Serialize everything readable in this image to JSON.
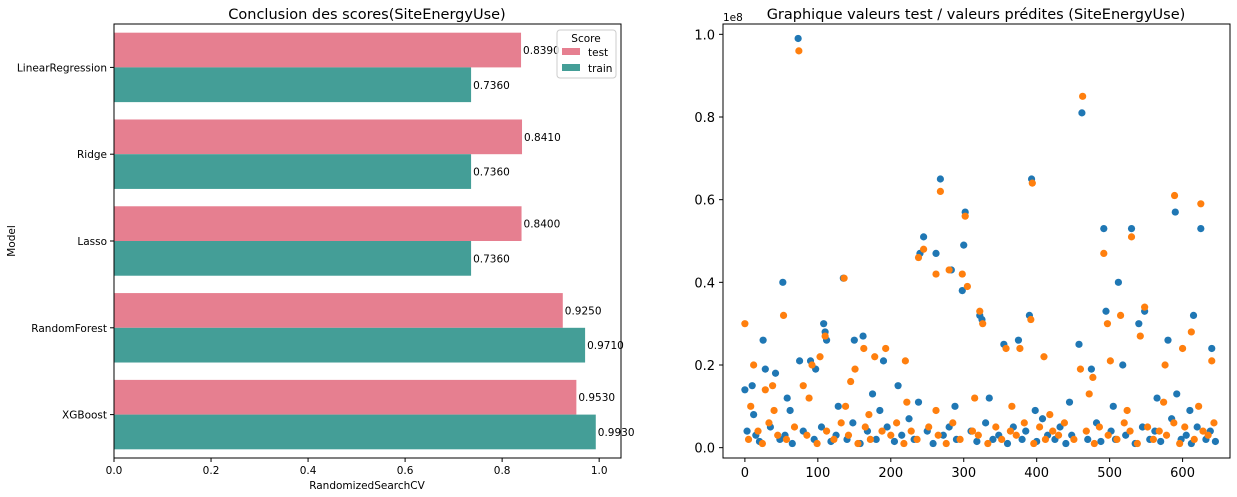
{
  "chart_data": [
    {
      "type": "bar",
      "orientation": "horizontal",
      "title": "Conclusion des scores(SiteEnergyUse)",
      "xlabel": "RandomizedSearchCV",
      "ylabel": "Model",
      "categories": [
        "LinearRegression",
        "Ridge",
        "Lasso",
        "RandomForest",
        "XGBoost"
      ],
      "series": [
        {
          "name": "test",
          "color": "#e67f90",
          "values": [
            0.839,
            0.841,
            0.84,
            0.925,
            0.953
          ],
          "labels": [
            "0.8390",
            "0.8410",
            "0.8400",
            "0.9250",
            "0.9530"
          ]
        },
        {
          "name": "train",
          "color": "#449e97",
          "values": [
            0.736,
            0.736,
            0.736,
            0.971,
            0.993
          ],
          "labels": [
            "0.7360",
            "0.7360",
            "0.7360",
            "0.9710",
            "0.9930"
          ]
        }
      ],
      "xlim": [
        0,
        1.045
      ],
      "xticks": [
        "0.0",
        "0.2",
        "0.4",
        "0.6",
        "0.8",
        "1.0"
      ],
      "legend": {
        "title": "Score",
        "position": "top-right"
      },
      "grid": false
    },
    {
      "type": "scatter",
      "title": "Graphique valeurs test / valeurs prédites (SiteEnergyUse)",
      "xlabel": "",
      "ylabel": "",
      "offset_text": "1e8",
      "xlim": [
        -30,
        665
      ],
      "ylim": [
        -0.025,
        1.025
      ],
      "xticks": [
        "0",
        "100",
        "200",
        "300",
        "400",
        "500",
        "600"
      ],
      "yticks": [
        "0.0",
        "0.2",
        "0.4",
        "0.6",
        "0.8",
        "1.0"
      ],
      "series": [
        {
          "color": "#1f77b4",
          "points": [
            [
              0,
              0.14
            ],
            [
              10,
              0.15
            ],
            [
              25,
              0.26
            ],
            [
              28,
              0.19
            ],
            [
              42,
              0.18
            ],
            [
              52,
              0.4
            ],
            [
              58,
              0.12
            ],
            [
              73,
              0.99
            ],
            [
              75,
              0.21
            ],
            [
              90,
              0.21
            ],
            [
              97,
              0.19
            ],
            [
              108,
              0.3
            ],
            [
              110,
              0.28
            ],
            [
              112,
              0.26
            ],
            [
              135,
              0.41
            ],
            [
              150,
              0.26
            ],
            [
              162,
              0.27
            ],
            [
              175,
              0.13
            ],
            [
              190,
              0.21
            ],
            [
              210,
              0.15
            ],
            [
              240,
              0.47
            ],
            [
              245,
              0.51
            ],
            [
              262,
              0.47
            ],
            [
              268,
              0.65
            ],
            [
              283,
              0.43
            ],
            [
              298,
              0.38
            ],
            [
              300,
              0.49
            ],
            [
              302,
              0.57
            ],
            [
              322,
              0.32
            ],
            [
              325,
              0.31
            ],
            [
              355,
              0.25
            ],
            [
              375,
              0.26
            ],
            [
              390,
              0.32
            ],
            [
              393,
              0.65
            ],
            [
              458,
              0.25
            ],
            [
              462,
              0.81
            ],
            [
              475,
              0.19
            ],
            [
              492,
              0.53
            ],
            [
              495,
              0.33
            ],
            [
              512,
              0.4
            ],
            [
              518,
              0.2
            ],
            [
              530,
              0.53
            ],
            [
              540,
              0.3
            ],
            [
              548,
              0.33
            ],
            [
              580,
              0.26
            ],
            [
              590,
              0.57
            ],
            [
              592,
              0.13
            ],
            [
              615,
              0.32
            ],
            [
              625,
              0.53
            ],
            [
              640,
              0.24
            ],
            [
              3,
              0.04
            ],
            [
              15,
              0.03
            ],
            [
              20,
              0.015
            ],
            [
              35,
              0.05
            ],
            [
              48,
              0.02
            ],
            [
              55,
              0.03
            ],
            [
              65,
              0.01
            ],
            [
              80,
              0.04
            ],
            [
              95,
              0.02
            ],
            [
              105,
              0.05
            ],
            [
              118,
              0.015
            ],
            [
              125,
              0.03
            ],
            [
              140,
              0.02
            ],
            [
              148,
              0.06
            ],
            [
              158,
              0.01
            ],
            [
              168,
              0.04
            ],
            [
              180,
              0.02
            ],
            [
              195,
              0.05
            ],
            [
              205,
              0.015
            ],
            [
              215,
              0.03
            ],
            [
              225,
              0.07
            ],
            [
              232,
              0.02
            ],
            [
              250,
              0.04
            ],
            [
              258,
              0.01
            ],
            [
              272,
              0.03
            ],
            [
              280,
              0.05
            ],
            [
              290,
              0.02
            ],
            [
              310,
              0.04
            ],
            [
              318,
              0.015
            ],
            [
              330,
              0.06
            ],
            [
              340,
              0.02
            ],
            [
              348,
              0.03
            ],
            [
              360,
              0.01
            ],
            [
              368,
              0.05
            ],
            [
              380,
              0.02
            ],
            [
              385,
              0.04
            ],
            [
              400,
              0.015
            ],
            [
              408,
              0.07
            ],
            [
              415,
              0.03
            ],
            [
              425,
              0.02
            ],
            [
              432,
              0.05
            ],
            [
              440,
              0.01
            ],
            [
              448,
              0.03
            ],
            [
              470,
              0.02
            ],
            [
              482,
              0.06
            ],
            [
              488,
              0.015
            ],
            [
              502,
              0.04
            ],
            [
              508,
              0.02
            ],
            [
              522,
              0.03
            ],
            [
              535,
              0.01
            ],
            [
              545,
              0.05
            ],
            [
              555,
              0.02
            ],
            [
              562,
              0.04
            ],
            [
              570,
              0.015
            ],
            [
              585,
              0.07
            ],
            [
              598,
              0.02
            ],
            [
              605,
              0.03
            ],
            [
              612,
              0.01
            ],
            [
              620,
              0.05
            ],
            [
              632,
              0.02
            ],
            [
              638,
              0.04
            ],
            [
              645,
              0.015
            ],
            [
              12,
              0.08
            ],
            [
              62,
              0.09
            ],
            [
              128,
              0.1
            ],
            [
              185,
              0.09
            ],
            [
              238,
              0.11
            ],
            [
              288,
              0.1
            ],
            [
              335,
              0.12
            ],
            [
              398,
              0.09
            ],
            [
              445,
              0.11
            ],
            [
              505,
              0.1
            ],
            [
              565,
              0.12
            ],
            [
              610,
              0.09
            ]
          ]
        },
        {
          "color": "#ff7f0e",
          "points": [
            [
              0,
              0.3
            ],
            [
              12,
              0.2
            ],
            [
              28,
              0.14
            ],
            [
              38,
              0.15
            ],
            [
              53,
              0.32
            ],
            [
              74,
              0.96
            ],
            [
              80,
              0.15
            ],
            [
              92,
              0.2
            ],
            [
              103,
              0.22
            ],
            [
              110,
              0.27
            ],
            [
              136,
              0.41
            ],
            [
              145,
              0.16
            ],
            [
              151,
              0.19
            ],
            [
              163,
              0.24
            ],
            [
              178,
              0.22
            ],
            [
              193,
              0.24
            ],
            [
              220,
              0.21
            ],
            [
              238,
              0.46
            ],
            [
              245,
              0.48
            ],
            [
              262,
              0.42
            ],
            [
              268,
              0.62
            ],
            [
              280,
              0.43
            ],
            [
              298,
              0.42
            ],
            [
              302,
              0.56
            ],
            [
              305,
              0.39
            ],
            [
              322,
              0.33
            ],
            [
              326,
              0.3
            ],
            [
              358,
              0.24
            ],
            [
              377,
              0.24
            ],
            [
              392,
              0.31
            ],
            [
              394,
              0.64
            ],
            [
              410,
              0.22
            ],
            [
              460,
              0.19
            ],
            [
              463,
              0.85
            ],
            [
              477,
              0.17
            ],
            [
              492,
              0.47
            ],
            [
              497,
              0.3
            ],
            [
              501,
              0.21
            ],
            [
              515,
              0.32
            ],
            [
              530,
              0.51
            ],
            [
              542,
              0.27
            ],
            [
              548,
              0.34
            ],
            [
              576,
              0.2
            ],
            [
              589,
              0.61
            ],
            [
              600,
              0.24
            ],
            [
              612,
              0.28
            ],
            [
              625,
              0.59
            ],
            [
              640,
              0.21
            ],
            [
              5,
              0.02
            ],
            [
              18,
              0.04
            ],
            [
              24,
              0.01
            ],
            [
              33,
              0.06
            ],
            [
              45,
              0.03
            ],
            [
              57,
              0.02
            ],
            [
              68,
              0.05
            ],
            [
              85,
              0.03
            ],
            [
              99,
              0.01
            ],
            [
              112,
              0.04
            ],
            [
              122,
              0.02
            ],
            [
              132,
              0.06
            ],
            [
              142,
              0.03
            ],
            [
              155,
              0.01
            ],
            [
              165,
              0.05
            ],
            [
              172,
              0.02
            ],
            [
              188,
              0.04
            ],
            [
              200,
              0.03
            ],
            [
              208,
              0.06
            ],
            [
              218,
              0.01
            ],
            [
              228,
              0.04
            ],
            [
              236,
              0.02
            ],
            [
              252,
              0.05
            ],
            [
              265,
              0.03
            ],
            [
              276,
              0.01
            ],
            [
              285,
              0.06
            ],
            [
              295,
              0.02
            ],
            [
              312,
              0.04
            ],
            [
              320,
              0.03
            ],
            [
              333,
              0.01
            ],
            [
              344,
              0.05
            ],
            [
              352,
              0.02
            ],
            [
              364,
              0.04
            ],
            [
              372,
              0.03
            ],
            [
              383,
              0.06
            ],
            [
              396,
              0.01
            ],
            [
              404,
              0.05
            ],
            [
              412,
              0.02
            ],
            [
              422,
              0.04
            ],
            [
              430,
              0.03
            ],
            [
              438,
              0.06
            ],
            [
              451,
              0.02
            ],
            [
              468,
              0.04
            ],
            [
              479,
              0.01
            ],
            [
              486,
              0.05
            ],
            [
              498,
              0.03
            ],
            [
              510,
              0.02
            ],
            [
              520,
              0.06
            ],
            [
              528,
              0.04
            ],
            [
              538,
              0.01
            ],
            [
              552,
              0.05
            ],
            [
              560,
              0.02
            ],
            [
              568,
              0.04
            ],
            [
              578,
              0.03
            ],
            [
              588,
              0.06
            ],
            [
              596,
              0.01
            ],
            [
              603,
              0.05
            ],
            [
              616,
              0.02
            ],
            [
              628,
              0.04
            ],
            [
              635,
              0.03
            ],
            [
              643,
              0.06
            ],
            [
              8,
              0.1
            ],
            [
              40,
              0.09
            ],
            [
              88,
              0.12
            ],
            [
              138,
              0.1
            ],
            [
              170,
              0.08
            ],
            [
              222,
              0.11
            ],
            [
              262,
              0.09
            ],
            [
              315,
              0.12
            ],
            [
              366,
              0.1
            ],
            [
              418,
              0.08
            ],
            [
              472,
              0.13
            ],
            [
              524,
              0.09
            ],
            [
              574,
              0.11
            ],
            [
              622,
              0.1
            ]
          ]
        }
      ]
    }
  ]
}
